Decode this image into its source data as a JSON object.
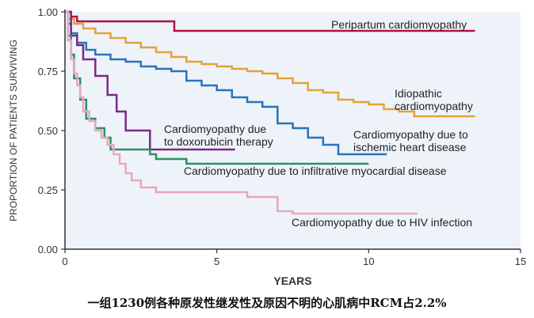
{
  "caption": "一组1230例各种原发性继发性及原因不明的心肌病中RCM占2.2%",
  "chart_data": {
    "type": "line",
    "step": true,
    "xlabel": "YEARS",
    "ylabel": "PROPORTION OF PATIENTS SURVIVING",
    "xlim": [
      0,
      15
    ],
    "ylim": [
      0,
      1
    ],
    "xticks": [
      0,
      5,
      10,
      15
    ],
    "yticks": [
      "0.00",
      "0.25",
      "0.50",
      "0.75",
      "1.00"
    ],
    "grid": false,
    "background": "#eef3fa",
    "series": [
      {
        "name": "Peripartum cardiomyopathy",
        "label_lines": [
          "Peripartum cardiomyopathy"
        ],
        "color": "#b5123f",
        "x": [
          0,
          0.2,
          0.4,
          3.6,
          13.5
        ],
        "y": [
          1.0,
          0.98,
          0.96,
          0.92,
          0.92
        ]
      },
      {
        "name": "Idiopathic cardiomyopathy",
        "label_lines": [
          "Idiopathic",
          "cardiomyopathy"
        ],
        "color": "#e3a23a",
        "x": [
          0,
          0.1,
          0.3,
          0.6,
          1.0,
          1.5,
          2.0,
          2.5,
          3.0,
          3.5,
          4.0,
          4.5,
          5.0,
          5.5,
          6.0,
          6.5,
          7.0,
          7.5,
          8.0,
          8.5,
          9.0,
          9.5,
          10.0,
          10.5,
          11.0,
          11.5,
          12.0,
          12.5,
          13.5
        ],
        "y": [
          1.0,
          0.97,
          0.95,
          0.93,
          0.91,
          0.89,
          0.87,
          0.85,
          0.83,
          0.81,
          0.79,
          0.78,
          0.77,
          0.76,
          0.75,
          0.74,
          0.72,
          0.7,
          0.67,
          0.66,
          0.63,
          0.62,
          0.61,
          0.59,
          0.58,
          0.56,
          0.56,
          0.56,
          0.56
        ]
      },
      {
        "name": "Cardiomyopathy due to ischemic heart disease",
        "label_lines": [
          "Cardiomyopathy due to",
          "ischemic heart disease"
        ],
        "color": "#2b73b8",
        "x": [
          0,
          0.1,
          0.2,
          0.4,
          0.7,
          1.0,
          1.5,
          2.0,
          2.5,
          3.0,
          3.5,
          4.0,
          4.5,
          5.0,
          5.5,
          6.0,
          6.5,
          7.0,
          7.5,
          8.0,
          8.5,
          9.0,
          9.5,
          10.0,
          10.6
        ],
        "y": [
          1.0,
          0.95,
          0.91,
          0.87,
          0.84,
          0.82,
          0.8,
          0.79,
          0.77,
          0.76,
          0.75,
          0.71,
          0.69,
          0.67,
          0.64,
          0.62,
          0.6,
          0.53,
          0.51,
          0.47,
          0.44,
          0.4,
          0.4,
          0.4,
          0.4
        ]
      },
      {
        "name": "Cardiomyopathy due to doxorubicin therapy",
        "label_lines": [
          "Cardiomyopathy due",
          "to doxorubicin therapy"
        ],
        "color": "#7a2a86",
        "x": [
          0,
          0.2,
          0.4,
          0.6,
          1.0,
          1.4,
          1.7,
          2.0,
          2.8,
          5.6
        ],
        "y": [
          1.0,
          0.9,
          0.86,
          0.8,
          0.73,
          0.65,
          0.58,
          0.5,
          0.42,
          0.42
        ]
      },
      {
        "name": "Cardiomyopathy due to infiltrative myocardial disease",
        "label_lines": [
          "Cardiomyopathy due to infiltrative myocardial disease"
        ],
        "color": "#2a9160",
        "x": [
          0,
          0.1,
          0.2,
          0.3,
          0.5,
          0.7,
          1.0,
          1.3,
          1.5,
          2.0,
          2.8,
          3.0,
          4.0,
          10.0
        ],
        "y": [
          1.0,
          0.9,
          0.82,
          0.72,
          0.63,
          0.55,
          0.51,
          0.47,
          0.42,
          0.42,
          0.4,
          0.38,
          0.36,
          0.36
        ]
      },
      {
        "name": "Cardiomyopathy due to HIV infection",
        "label_lines": [
          "Cardiomyopathy due to HIV infection"
        ],
        "color": "#e9a6bd",
        "x": [
          0,
          0.1,
          0.2,
          0.3,
          0.4,
          0.5,
          0.6,
          0.8,
          1.0,
          1.2,
          1.4,
          1.6,
          1.8,
          2.0,
          2.2,
          2.5,
          3.0,
          4.0,
          6.0,
          7.0,
          7.5,
          9.0,
          11.6
        ],
        "y": [
          1.0,
          0.88,
          0.8,
          0.74,
          0.69,
          0.64,
          0.58,
          0.54,
          0.5,
          0.47,
          0.44,
          0.4,
          0.36,
          0.32,
          0.29,
          0.26,
          0.24,
          0.24,
          0.22,
          0.16,
          0.15,
          0.15,
          0.15
        ]
      }
    ]
  }
}
